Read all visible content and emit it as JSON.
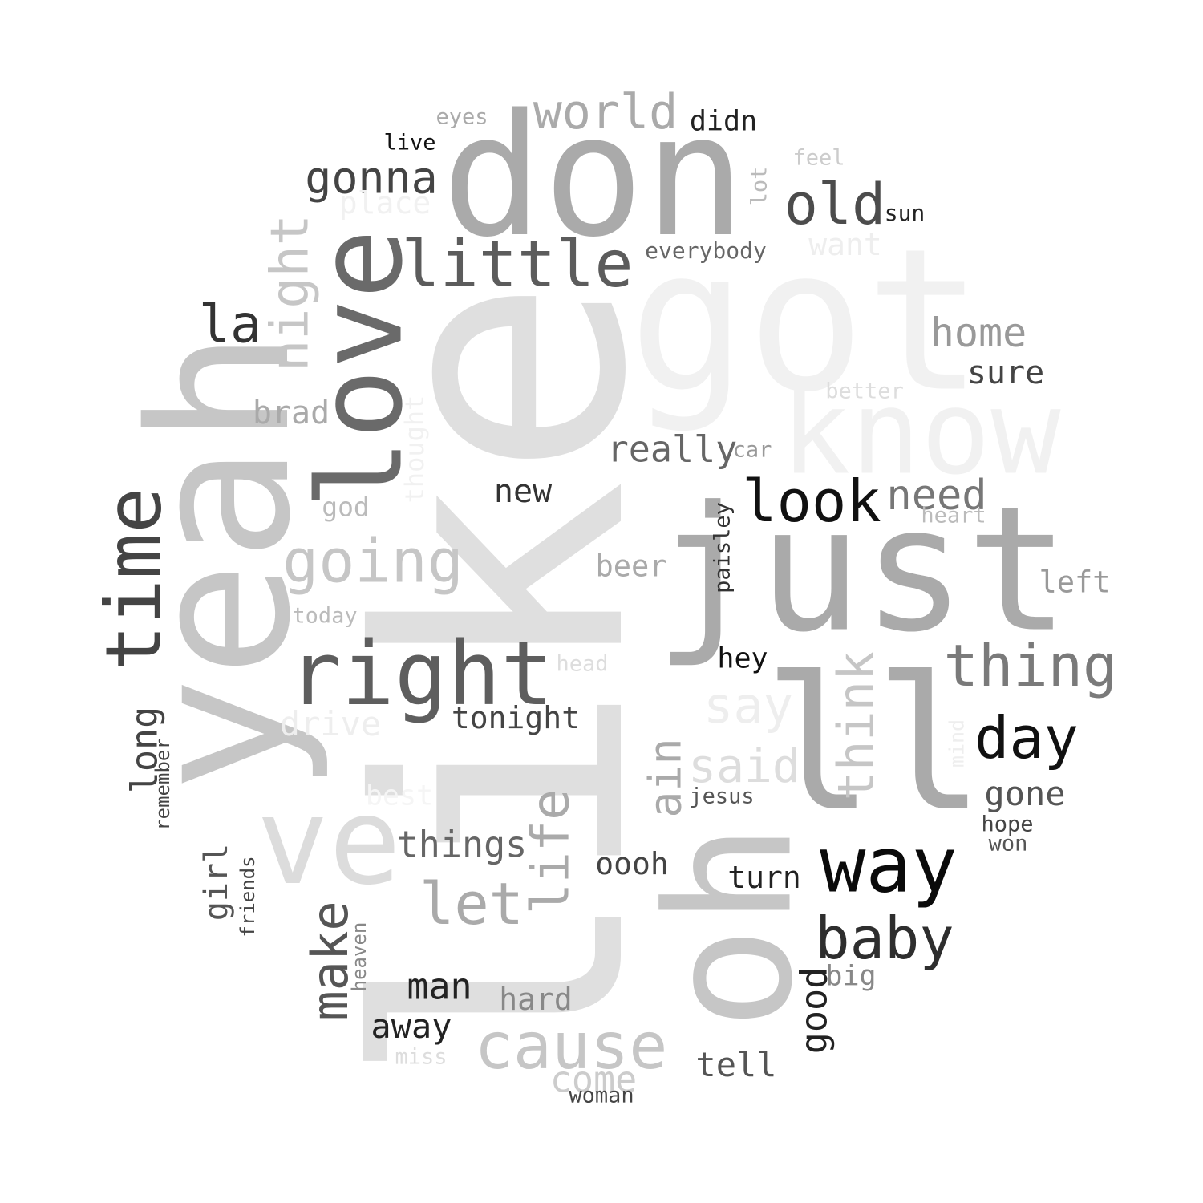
{
  "words": [
    {
      "text": "like",
      "color": "#dfdfdf"
    },
    {
      "text": "got",
      "color": "#f1f1f1"
    },
    {
      "text": "yeah",
      "color": "#c6c6c6"
    },
    {
      "text": "don",
      "color": "#aaaaaa"
    },
    {
      "text": "just",
      "color": "#aaaaaa"
    },
    {
      "text": "ll",
      "color": "#aaaaaa"
    },
    {
      "text": "oh",
      "color": "#c6c6c6"
    },
    {
      "text": "know",
      "color": "#f1f1f1"
    },
    {
      "text": "love",
      "color": "#6a6a6a"
    },
    {
      "text": "ve",
      "color": "#dcdcdc"
    },
    {
      "text": "right",
      "color": "#5e5e5e"
    },
    {
      "text": "time",
      "color": "#444444"
    },
    {
      "text": "way",
      "color": "#0a0a0a"
    },
    {
      "text": "little",
      "color": "#5c5c5c"
    },
    {
      "text": "cause",
      "color": "#c6c6c6"
    },
    {
      "text": "look",
      "color": "#111111"
    },
    {
      "text": "going",
      "color": "#c6c6c6"
    },
    {
      "text": "baby",
      "color": "#2e2e2e"
    },
    {
      "text": "thing",
      "color": "#7a7a7a"
    },
    {
      "text": "day",
      "color": "#111111"
    },
    {
      "text": "old",
      "color": "#4c4c4c"
    },
    {
      "text": "world",
      "color": "#aaaaaa"
    },
    {
      "text": "let",
      "color": "#aaaaaa"
    },
    {
      "text": "night",
      "color": "#c6c6c6"
    },
    {
      "text": "think",
      "color": "#c6c6c6"
    },
    {
      "text": "la",
      "color": "#333333"
    },
    {
      "text": "life",
      "color": "#aaaaaa"
    },
    {
      "text": "make",
      "color": "#555555"
    },
    {
      "text": "say",
      "color": "#eeeeee"
    },
    {
      "text": "said",
      "color": "#dddddd"
    },
    {
      "text": "gonna",
      "color": "#444444"
    },
    {
      "text": "home",
      "color": "#999999"
    },
    {
      "text": "need",
      "color": "#777777"
    },
    {
      "text": "ain",
      "color": "#aaaaaa"
    },
    {
      "text": "really",
      "color": "#666666"
    },
    {
      "text": "things",
      "color": "#666666"
    },
    {
      "text": "long",
      "color": "#444444"
    },
    {
      "text": "man",
      "color": "#222222"
    },
    {
      "text": "away",
      "color": "#222222"
    },
    {
      "text": "good",
      "color": "#222222"
    },
    {
      "text": "tonight",
      "color": "#444444"
    },
    {
      "text": "gone",
      "color": "#555555"
    },
    {
      "text": "come",
      "color": "#cccccc"
    },
    {
      "text": "tell",
      "color": "#555555"
    },
    {
      "text": "new",
      "color": "#333333"
    },
    {
      "text": "sure",
      "color": "#444444"
    },
    {
      "text": "drive",
      "color": "#eeeeee"
    },
    {
      "text": "brad",
      "color": "#aaaaaa"
    },
    {
      "text": "girl",
      "color": "#555555"
    },
    {
      "text": "oooh",
      "color": "#444444"
    },
    {
      "text": "turn",
      "color": "#222222"
    },
    {
      "text": "hard",
      "color": "#888888"
    },
    {
      "text": "didn",
      "color": "#222222"
    },
    {
      "text": "place",
      "color": "#f1f1f1"
    },
    {
      "text": "want",
      "color": "#eeeeee"
    },
    {
      "text": "beer",
      "color": "#aaaaaa"
    },
    {
      "text": "left",
      "color": "#999999"
    },
    {
      "text": "hey",
      "color": "#111111"
    },
    {
      "text": "big",
      "color": "#888888"
    },
    {
      "text": "best",
      "color": "#f5f5f5"
    },
    {
      "text": "god",
      "color": "#bbbbbb"
    },
    {
      "text": "thought",
      "color": "#f1f1f1"
    },
    {
      "text": "everybody",
      "color": "#666666"
    },
    {
      "text": "sun",
      "color": "#222222"
    },
    {
      "text": "live",
      "color": "#111111"
    },
    {
      "text": "eyes",
      "color": "#aaaaaa"
    },
    {
      "text": "feel",
      "color": "#cccccc"
    },
    {
      "text": "lot",
      "color": "#bbbbbb"
    },
    {
      "text": "better",
      "color": "#dddddd"
    },
    {
      "text": "car",
      "color": "#999999"
    },
    {
      "text": "heart",
      "color": "#bbbbbb"
    },
    {
      "text": "paisley",
      "color": "#333333"
    },
    {
      "text": "today",
      "color": "#bbbbbb"
    },
    {
      "text": "head",
      "color": "#dddddd"
    },
    {
      "text": "jesus",
      "color": "#555555"
    },
    {
      "text": "hope",
      "color": "#444444"
    },
    {
      "text": "won",
      "color": "#555555"
    },
    {
      "text": "mind",
      "color": "#eeeeee"
    },
    {
      "text": "remember",
      "color": "#444444"
    },
    {
      "text": "friends",
      "color": "#444444"
    },
    {
      "text": "heaven",
      "color": "#888888"
    },
    {
      "text": "miss",
      "color": "#dddddd"
    },
    {
      "text": "woman",
      "color": "#444444"
    }
  ]
}
